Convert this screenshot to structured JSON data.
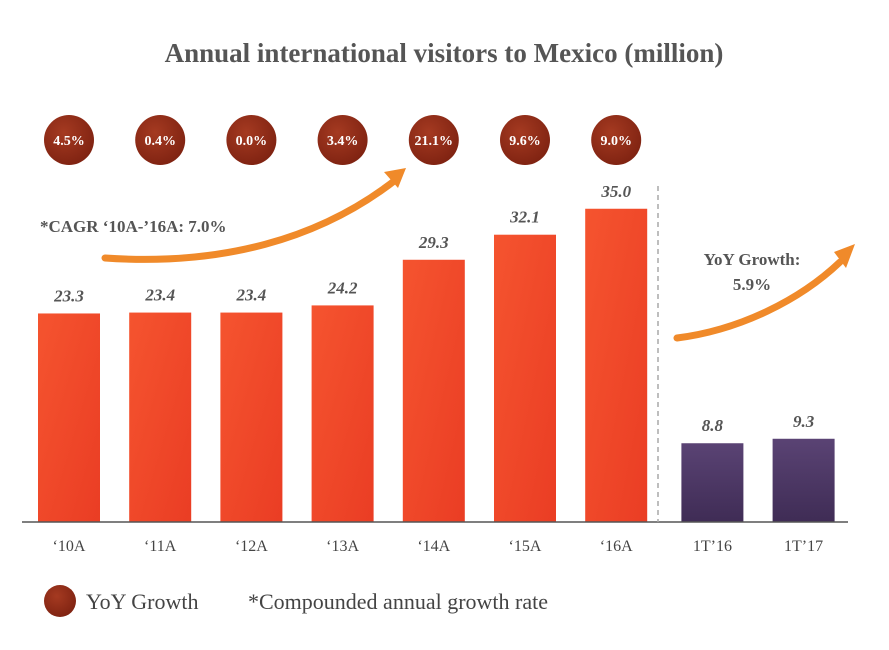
{
  "chart_data": {
    "type": "bar",
    "title": "Annual international visitors to Mexico (million)",
    "categories": [
      "‘10A",
      "‘11A",
      "‘12A",
      "‘13A",
      "‘14A",
      "‘15A",
      "‘16A",
      "1T’16",
      "1T’17"
    ],
    "values": [
      23.3,
      23.4,
      23.4,
      24.2,
      29.3,
      32.1,
      35.0,
      8.8,
      9.3
    ],
    "value_labels": [
      "23.3",
      "23.4",
      "23.4",
      "24.2",
      "29.3",
      "32.1",
      "35.0",
      "8.8",
      "9.3"
    ],
    "yoy_growth": [
      "4.5%",
      "0.4%",
      "0.0%",
      "3.4%",
      "21.1%",
      "9.6%",
      "9.0%"
    ],
    "cagr_note": "*CAGR ‘10A-’16A: 7.0%",
    "quarter_growth_title": "YoY Growth:",
    "quarter_growth_value": "5.9%",
    "ylim": [
      0,
      35
    ],
    "grid": false,
    "colors": {
      "annual_bar": "#f04a2c",
      "quarter_bar": "#4e3765",
      "badge": "#8f2a16",
      "arrow": "#f08a2a",
      "text": "#555555"
    }
  },
  "legend": {
    "marker_label": "YoY Growth",
    "footnote": "*Compounded annual growth rate",
    "position": "bottom-left"
  }
}
